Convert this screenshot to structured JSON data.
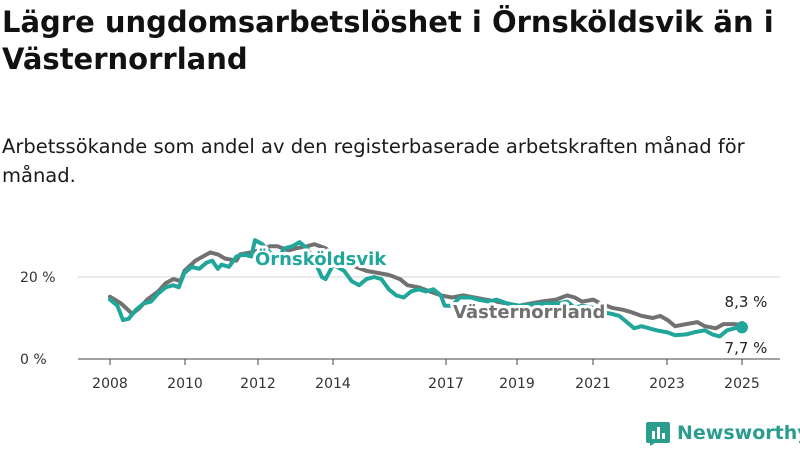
{
  "title": "Lägre ungdomsarbetslöshet i Örnsköldsvik än i Västernorrland",
  "subtitle": "Arbetssökande som andel av den registerbaserade arbetskraften månad för månad.",
  "brand": {
    "name": "Newsworthy",
    "icon": "newsworthy-logo-icon",
    "color": "#2a9d8f"
  },
  "chart_data": {
    "type": "line",
    "title": "Lägre ungdomsarbetslöshet i Örnsköldsvik än i Västernorrland",
    "subtitle": "Arbetssökande som andel av den registerbaserade arbetskraften månad för månad.",
    "xlabel": "",
    "ylabel": "",
    "x_ticks": [
      "2008",
      "2010",
      "2012",
      "2014",
      "2017",
      "2019",
      "2021",
      "2023",
      "2025"
    ],
    "y_ticks": [
      "0 %",
      "20 %"
    ],
    "ylim": [
      0,
      32
    ],
    "grid": "horizontal",
    "x_range": [
      2008.0,
      2025.0
    ],
    "series": [
      {
        "name": "Västernorrland",
        "color": "#717171",
        "end_label": "8,3 %",
        "points": [
          [
            2008.0,
            15.2
          ],
          [
            2008.3,
            13.5
          ],
          [
            2008.6,
            11.0
          ],
          [
            2008.8,
            12.5
          ],
          [
            2009.0,
            14.5
          ],
          [
            2009.3,
            16.5
          ],
          [
            2009.5,
            18.5
          ],
          [
            2009.7,
            19.5
          ],
          [
            2009.9,
            19.0
          ],
          [
            2010.0,
            21.5
          ],
          [
            2010.3,
            24.0
          ],
          [
            2010.5,
            25.0
          ],
          [
            2010.7,
            26.0
          ],
          [
            2010.9,
            25.5
          ],
          [
            2011.1,
            24.5
          ],
          [
            2011.4,
            24.0
          ],
          [
            2011.5,
            25.5
          ],
          [
            2011.8,
            26.0
          ],
          [
            2012.0,
            26.5
          ],
          [
            2012.3,
            27.5
          ],
          [
            2012.5,
            27.5
          ],
          [
            2012.8,
            26.5
          ],
          [
            2013.0,
            27.0
          ],
          [
            2013.3,
            27.5
          ],
          [
            2013.5,
            28.0
          ],
          [
            2013.8,
            27.0
          ],
          [
            2014.0,
            25.5
          ],
          [
            2014.3,
            24.0
          ],
          [
            2014.6,
            22.5
          ],
          [
            2014.9,
            21.5
          ],
          [
            2015.2,
            21.0
          ],
          [
            2015.5,
            20.5
          ],
          [
            2015.8,
            19.5
          ],
          [
            2016.0,
            18.0
          ],
          [
            2016.3,
            17.5
          ],
          [
            2016.6,
            16.5
          ],
          [
            2016.9,
            15.5
          ],
          [
            2017.2,
            15.0
          ],
          [
            2017.5,
            15.5
          ],
          [
            2017.8,
            15.0
          ],
          [
            2018.1,
            14.5
          ],
          [
            2018.4,
            14.0
          ],
          [
            2018.7,
            13.5
          ],
          [
            2019.0,
            13.0
          ],
          [
            2019.3,
            13.5
          ],
          [
            2019.6,
            14.0
          ],
          [
            2020.0,
            14.5
          ],
          [
            2020.3,
            15.5
          ],
          [
            2020.5,
            15.0
          ],
          [
            2020.7,
            14.0
          ],
          [
            2021.0,
            14.5
          ],
          [
            2021.2,
            13.5
          ],
          [
            2021.5,
            12.5
          ],
          [
            2021.8,
            12.0
          ],
          [
            2022.0,
            11.5
          ],
          [
            2022.3,
            10.5
          ],
          [
            2022.6,
            10.0
          ],
          [
            2022.8,
            10.5
          ],
          [
            2023.0,
            9.5
          ],
          [
            2023.2,
            8.0
          ],
          [
            2023.5,
            8.5
          ],
          [
            2023.8,
            9.0
          ],
          [
            2024.0,
            8.0
          ],
          [
            2024.3,
            7.5
          ],
          [
            2024.5,
            8.5
          ],
          [
            2024.8,
            8.5
          ],
          [
            2025.0,
            8.3
          ]
        ]
      },
      {
        "name": "Örnsköldsvik",
        "color": "#20a69a",
        "end_label": "7,7 %",
        "points": [
          [
            2008.0,
            14.5
          ],
          [
            2008.2,
            13.0
          ],
          [
            2008.35,
            9.5
          ],
          [
            2008.5,
            9.8
          ],
          [
            2008.7,
            12.0
          ],
          [
            2008.9,
            13.5
          ],
          [
            2009.1,
            14.0
          ],
          [
            2009.3,
            16.0
          ],
          [
            2009.5,
            17.5
          ],
          [
            2009.7,
            18.0
          ],
          [
            2009.85,
            17.5
          ],
          [
            2010.0,
            21.0
          ],
          [
            2010.2,
            22.5
          ],
          [
            2010.4,
            22.0
          ],
          [
            2010.6,
            23.5
          ],
          [
            2010.75,
            24.0
          ],
          [
            2010.9,
            22.0
          ],
          [
            2011.0,
            23.0
          ],
          [
            2011.2,
            22.5
          ],
          [
            2011.4,
            25.0
          ],
          [
            2011.6,
            25.5
          ],
          [
            2011.8,
            25.0
          ],
          [
            2011.9,
            29.0
          ],
          [
            2012.1,
            28.0
          ],
          [
            2012.3,
            26.0
          ],
          [
            2012.5,
            24.5
          ],
          [
            2012.7,
            27.0
          ],
          [
            2012.9,
            27.5
          ],
          [
            2013.1,
            28.5
          ],
          [
            2013.3,
            27.0
          ],
          [
            2013.5,
            24.0
          ],
          [
            2013.7,
            20.0
          ],
          [
            2013.8,
            19.5
          ],
          [
            2014.0,
            23.0
          ],
          [
            2014.3,
            21.5
          ],
          [
            2014.5,
            19.0
          ],
          [
            2014.7,
            18.0
          ],
          [
            2014.9,
            19.5
          ],
          [
            2015.1,
            20.0
          ],
          [
            2015.3,
            19.5
          ],
          [
            2015.5,
            17.0
          ],
          [
            2015.7,
            15.5
          ],
          [
            2015.9,
            15.0
          ],
          [
            2016.1,
            16.5
          ],
          [
            2016.3,
            17.0
          ],
          [
            2016.5,
            16.5
          ],
          [
            2016.7,
            17.0
          ],
          [
            2016.9,
            15.5
          ],
          [
            2017.0,
            13.0
          ],
          [
            2017.2,
            13.0
          ],
          [
            2017.4,
            15.0
          ],
          [
            2017.7,
            15.0
          ],
          [
            2017.9,
            14.5
          ],
          [
            2018.2,
            14.0
          ],
          [
            2018.4,
            14.5
          ],
          [
            2018.7,
            13.5
          ],
          [
            2019.0,
            13.0
          ],
          [
            2019.3,
            13.2
          ],
          [
            2019.6,
            13.5
          ],
          [
            2020.0,
            13.5
          ],
          [
            2020.3,
            14.0
          ],
          [
            2020.5,
            12.5
          ],
          [
            2020.7,
            13.0
          ],
          [
            2021.0,
            12.5
          ],
          [
            2021.2,
            11.5
          ],
          [
            2021.5,
            11.0
          ],
          [
            2021.7,
            10.5
          ],
          [
            2021.9,
            9.0
          ],
          [
            2022.1,
            7.5
          ],
          [
            2022.3,
            8.0
          ],
          [
            2022.5,
            7.5
          ],
          [
            2022.7,
            7.0
          ],
          [
            2023.0,
            6.5
          ],
          [
            2023.2,
            5.8
          ],
          [
            2023.5,
            6.0
          ],
          [
            2023.7,
            6.5
          ],
          [
            2024.0,
            7.0
          ],
          [
            2024.2,
            6.0
          ],
          [
            2024.4,
            5.5
          ],
          [
            2024.6,
            7.0
          ],
          [
            2024.8,
            7.5
          ],
          [
            2025.0,
            7.7
          ]
        ]
      }
    ]
  }
}
